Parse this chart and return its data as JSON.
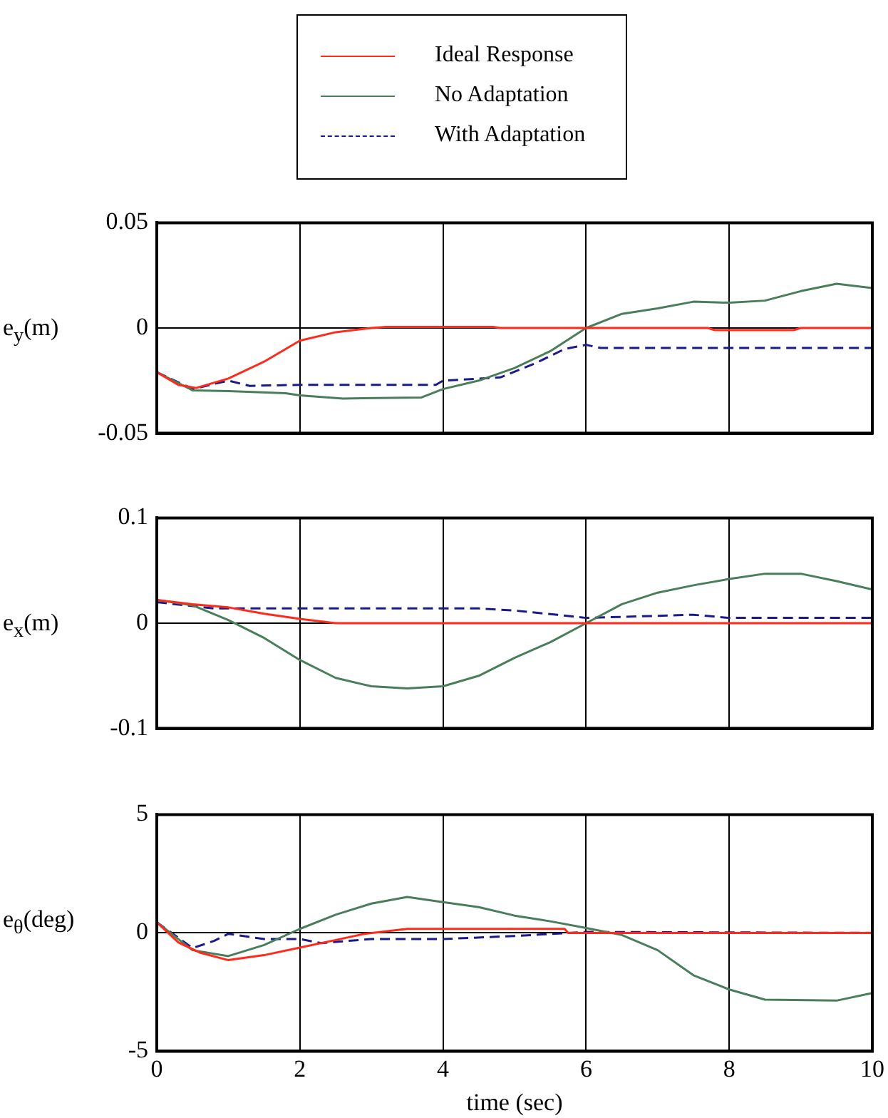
{
  "chart_data": [
    {
      "type": "line",
      "ylabel": "e$_{y}$(m)",
      "legend": "top",
      "grid": true,
      "tick_labels": "y",
      "xlim": [
        0,
        10
      ],
      "xticks": [
        0,
        2,
        4,
        6,
        8,
        10
      ],
      "ylim": [
        -0.05,
        0.05
      ],
      "yticks": [
        -0.05,
        0,
        0.05
      ],
      "series": [
        {
          "name": "Ideal Response",
          "color": "#ff2a1a",
          "line_style": "solid",
          "x": [
            0,
            0.3,
            0.55,
            1,
            1.5,
            2,
            2.5,
            3,
            3.2,
            4.7,
            4.8,
            7.7,
            7.8,
            8.9,
            9,
            10
          ],
          "values": [
            -0.021,
            -0.027,
            -0.0285,
            -0.024,
            -0.016,
            -0.006,
            -0.002,
            0,
            0.0005,
            0.0005,
            0,
            0,
            -0.001,
            -0.001,
            0,
            0
          ]
        },
        {
          "name": "No Adaptation",
          "color": "#4a7d5a",
          "line_style": "solid",
          "x": [
            0,
            0.5,
            1,
            1.8,
            2,
            2.6,
            3.7,
            4,
            4.5,
            5,
            5.5,
            6,
            6.5,
            7,
            7.5,
            8,
            8.5,
            9,
            9.5,
            10
          ],
          "values": [
            -0.021,
            -0.0296,
            -0.03,
            -0.031,
            -0.032,
            -0.0335,
            -0.033,
            -0.029,
            -0.025,
            -0.019,
            -0.011,
            0,
            0.0067,
            0.0093,
            0.0125,
            0.012,
            0.013,
            0.0175,
            0.021,
            0.019
          ]
        },
        {
          "name": "With Adaptation",
          "color": "#1a1a8c",
          "line_style": "dashed",
          "x": [
            0,
            0.5,
            1,
            1.3,
            2,
            3.9,
            4,
            4.8,
            5.3,
            5.7,
            6,
            6.2,
            10
          ],
          "values": [
            -0.021,
            -0.029,
            -0.025,
            -0.0275,
            -0.027,
            -0.027,
            -0.025,
            -0.0235,
            -0.0166,
            -0.01,
            -0.008,
            -0.0095,
            -0.0095
          ]
        }
      ]
    },
    {
      "type": "line",
      "ylabel": "e$_{x}$(m)",
      "grid": true,
      "tick_labels": "y",
      "xlim": [
        0,
        10
      ],
      "xticks": [
        0,
        2,
        4,
        6,
        8,
        10
      ],
      "ylim": [
        -0.1,
        0.1
      ],
      "yticks": [
        -0.1,
        0,
        0.1
      ],
      "series": [
        {
          "color": "#ff2a1a",
          "line_style": "solid",
          "x": [
            0,
            0.5,
            1,
            1.5,
            2,
            2.5,
            10
          ],
          "values": [
            0.022,
            0.018,
            0.015,
            0.009,
            0.004,
            0,
            0
          ]
        },
        {
          "color": "#4a7d5a",
          "line_style": "solid",
          "x": [
            0,
            0.5,
            1,
            1.5,
            2,
            2.5,
            3,
            3.5,
            4,
            4.5,
            5,
            5.5,
            6,
            6.5,
            7,
            7.5,
            8,
            8.5,
            9,
            9.5,
            10
          ],
          "values": [
            0.022,
            0.017,
            0.003,
            -0.014,
            -0.035,
            -0.052,
            -0.06,
            -0.062,
            -0.06,
            -0.05,
            -0.033,
            -0.018,
            0,
            0.018,
            0.029,
            0.036,
            0.042,
            0.047,
            0.047,
            0.04,
            0.032
          ]
        },
        {
          "color": "#1a1a8c",
          "line_style": "dashed",
          "x": [
            0,
            0.8,
            1,
            4.5,
            5,
            5.6,
            6,
            7.5,
            8,
            10
          ],
          "values": [
            0.02,
            0.014,
            0.014,
            0.014,
            0.012,
            0.008,
            0.005,
            0.008,
            0.005,
            0.005
          ]
        }
      ]
    },
    {
      "type": "line",
      "ylabel": "e$_{θ}$(deg)",
      "xlabel": "time (sec)",
      "grid": true,
      "xlim": [
        0,
        10
      ],
      "xticks": [
        0,
        2,
        4,
        6,
        8,
        10
      ],
      "ylim": [
        -5,
        5
      ],
      "yticks": [
        -5,
        0,
        5
      ],
      "series": [
        {
          "color": "#ff2a1a",
          "line_style": "solid",
          "x": [
            0,
            0.3,
            0.6,
            1,
            1.5,
            2,
            2.5,
            2.9,
            3.5,
            5.7,
            5.75,
            10
          ],
          "values": [
            0.45,
            -0.4,
            -0.83,
            -1.15,
            -0.94,
            -0.62,
            -0.3,
            -0.04,
            0.17,
            0.17,
            0,
            0
          ]
        },
        {
          "color": "#4a7d5a",
          "line_style": "solid",
          "x": [
            0,
            0.5,
            1,
            1.5,
            2,
            2.5,
            3,
            3.5,
            4,
            4.5,
            5,
            5.5,
            6,
            6.5,
            7,
            7.5,
            8,
            8.5,
            9.5,
            10
          ],
          "values": [
            0.45,
            -0.73,
            -0.98,
            -0.51,
            0.17,
            0.77,
            1.24,
            1.52,
            1.3,
            1.09,
            0.73,
            0.49,
            0.21,
            -0.09,
            -0.73,
            -1.79,
            -2.39,
            -2.82,
            -2.86,
            -2.54
          ]
        },
        {
          "color": "#1a1a8c",
          "line_style": "dashed",
          "x": [
            0,
            0.5,
            0.8,
            1,
            1.5,
            2,
            2.3,
            3,
            4,
            5,
            6,
            10
          ],
          "values": [
            0.45,
            -0.64,
            -0.34,
            -0.04,
            -0.26,
            -0.26,
            -0.43,
            -0.26,
            -0.26,
            -0.13,
            0.04,
            0
          ]
        }
      ]
    }
  ]
}
